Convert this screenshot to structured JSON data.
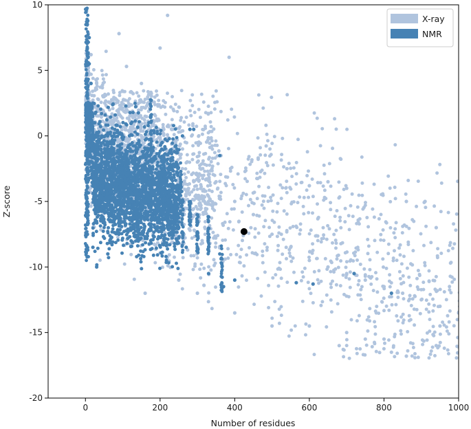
{
  "chart_data": {
    "type": "scatter",
    "xlabel": "Number of residues",
    "ylabel": "Z-score",
    "xlim": [
      -100,
      1000
    ],
    "ylim": [
      -20,
      10
    ],
    "x_ticks": [
      0,
      200,
      400,
      600,
      800,
      1000
    ],
    "y_ticks": [
      -20,
      -15,
      -10,
      -5,
      0,
      5,
      10
    ],
    "grid": false,
    "legend_position": "top-right",
    "series": [
      {
        "name": "X-ray",
        "color": "#b0c4de",
        "marker": "circle",
        "description_points": [
          [
            3,
            9.5
          ],
          [
            8,
            7.8
          ],
          [
            15,
            6.2
          ],
          [
            30,
            4.0
          ],
          [
            50,
            3.0
          ],
          [
            80,
            2.5
          ],
          [
            110,
            2.0
          ],
          [
            160,
            1.5
          ],
          [
            210,
            0.5
          ],
          [
            260,
            -1.0
          ],
          [
            300,
            -2.0
          ],
          [
            350,
            -3.5
          ],
          [
            400,
            -5.0
          ],
          [
            450,
            -6.0
          ],
          [
            500,
            -7.5
          ],
          [
            550,
            -8.5
          ],
          [
            600,
            -9.5
          ],
          [
            650,
            -10.0
          ],
          [
            700,
            -10.5
          ],
          [
            750,
            -11.0
          ],
          [
            800,
            -11.5
          ],
          [
            850,
            -12.0
          ],
          [
            900,
            -12.5
          ],
          [
            950,
            -13.0
          ],
          [
            1000,
            -13.5
          ],
          [
            90,
            7.8
          ],
          [
            200,
            6.7
          ],
          [
            220,
            9.2
          ],
          [
            385,
            6.0
          ],
          [
            150,
            4.0
          ],
          [
            110,
            5.3
          ],
          [
            540,
            -2.5
          ],
          [
            600,
            -3.8
          ],
          [
            650,
            -3.5
          ],
          [
            700,
            -4.0
          ],
          [
            860,
            -5.0
          ],
          [
            910,
            -5.0
          ],
          [
            940,
            -7.0
          ],
          [
            680,
            -16.0
          ],
          [
            820,
            -16.5
          ],
          [
            860,
            -16.8
          ],
          [
            940,
            -16.0
          ],
          [
            160,
            -12.0
          ],
          [
            250,
            -11.0
          ],
          [
            300,
            -12.0
          ],
          [
            400,
            -13.5
          ],
          [
            500,
            -14.5
          ],
          [
            600,
            -14.5
          ],
          [
            700,
            -15.0
          ],
          [
            750,
            -15.5
          ],
          [
            800,
            -15.5
          ],
          [
            950,
            -14.5
          ]
        ]
      },
      {
        "name": "NMR",
        "color": "#4682b4",
        "marker": "circle",
        "description_points": [
          [
            2,
            9.7
          ],
          [
            5,
            8.5
          ],
          [
            10,
            7.5
          ],
          [
            10,
            5.5
          ],
          [
            15,
            4.0
          ],
          [
            20,
            2.5
          ],
          [
            25,
            1.0
          ],
          [
            30,
            0.0
          ],
          [
            40,
            -1.0
          ],
          [
            60,
            -2.0
          ],
          [
            80,
            -3.0
          ],
          [
            100,
            -4.0
          ],
          [
            130,
            -4.5
          ],
          [
            160,
            -5.0
          ],
          [
            190,
            -5.5
          ],
          [
            220,
            -6.0
          ],
          [
            250,
            -7.0
          ],
          [
            270,
            -8.5
          ],
          [
            300,
            -6.5
          ],
          [
            330,
            -7.5
          ],
          [
            360,
            -9.0
          ],
          [
            370,
            -11.5
          ],
          [
            400,
            -11.0
          ],
          [
            290,
            0.5
          ],
          [
            260,
            0.0
          ],
          [
            280,
            0.5
          ],
          [
            360,
            -1.5
          ],
          [
            175,
            2.3
          ],
          [
            565,
            -11.2
          ],
          [
            610,
            -11.3
          ],
          [
            720,
            -10.5
          ],
          [
            820,
            -12.0
          ],
          [
            30,
            -10.0
          ],
          [
            60,
            -9.0
          ],
          [
            20,
            -8.5
          ],
          [
            330,
            -10.5
          ]
        ]
      },
      {
        "name": "",
        "color": "#000000",
        "marker": "circle-large",
        "description_points": [
          [
            425,
            -7.3
          ]
        ]
      }
    ]
  }
}
